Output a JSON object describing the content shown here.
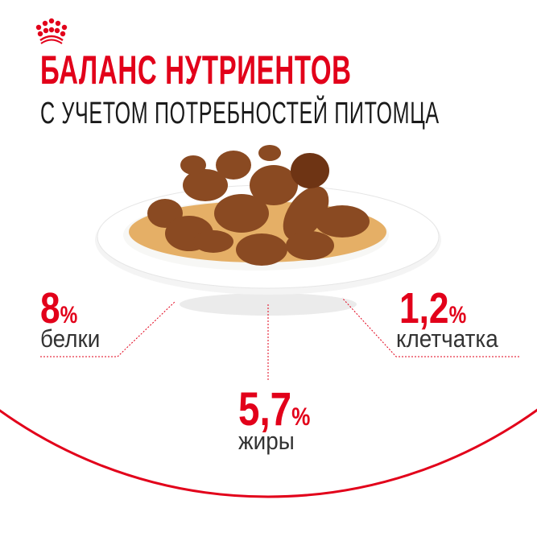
{
  "brand": {
    "logo": "royal-canin-crown-logo",
    "color": "#e2001a"
  },
  "header": {
    "title": "БАЛАНС НУТРИЕНТОВ",
    "subtitle": "С УЧЕТОМ ПОТРЕБНОСТЕЙ ПИТОМЦА"
  },
  "nutrients": [
    {
      "value": "8",
      "unit": "%",
      "label": "белки"
    },
    {
      "value": "5,7",
      "unit": "%",
      "label": "жиры"
    },
    {
      "value": "1,2",
      "unit": "%",
      "label": "клетчатка"
    }
  ],
  "image": {
    "subject": "food-pieces-in-gravy-on-plate"
  }
}
